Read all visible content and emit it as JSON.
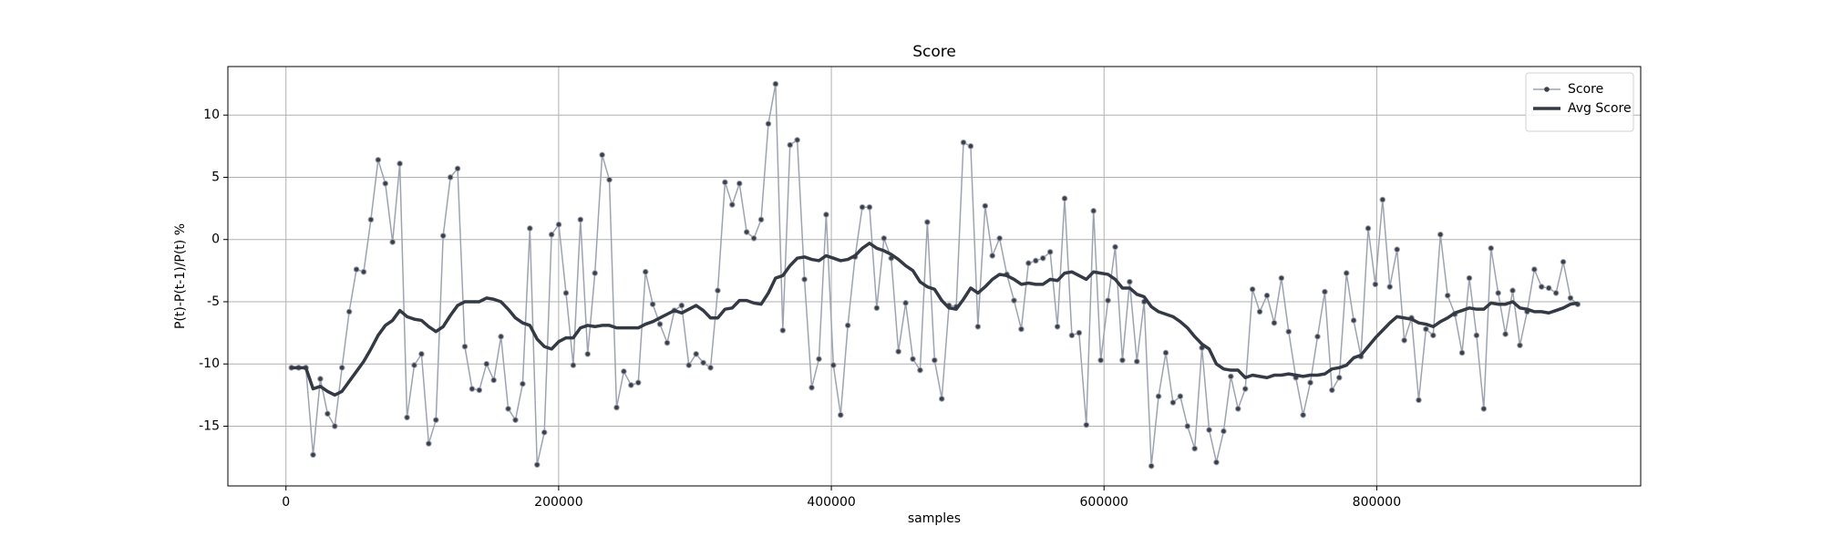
{
  "chart_data": {
    "type": "line",
    "title": "Score",
    "xlabel": "samples",
    "ylabel": "P(t)-P(t-1)/P(t) %",
    "x": [
      4000,
      9300,
      14600,
      19900,
      25200,
      30500,
      35800,
      41100,
      46400,
      51700,
      57000,
      62300,
      67600,
      72900,
      78200,
      83500,
      88800,
      94100,
      99400,
      104700,
      110000,
      115300,
      120600,
      125900,
      131200,
      136500,
      141800,
      147100,
      152400,
      157700,
      163000,
      168300,
      173600,
      178900,
      184200,
      189500,
      194800,
      200100,
      205400,
      210700,
      216000,
      221300,
      226600,
      231900,
      237200,
      242500,
      247800,
      253100,
      258400,
      263700,
      269000,
      274300,
      279600,
      284900,
      290200,
      295500,
      300800,
      306100,
      311400,
      316700,
      322000,
      327300,
      332600,
      337900,
      343200,
      348500,
      353800,
      359100,
      364400,
      369700,
      375000,
      380300,
      385600,
      390900,
      396200,
      401500,
      406800,
      412100,
      417400,
      422700,
      428000,
      433300,
      438600,
      443900,
      449200,
      454500,
      459800,
      465100,
      470400,
      475700,
      481000,
      486300,
      491600,
      496900,
      502200,
      507500,
      512800,
      518100,
      523400,
      528700,
      534000,
      539300,
      544600,
      549900,
      555200,
      560500,
      565800,
      571100,
      576400,
      581700,
      587000,
      592300,
      597600,
      602900,
      608200,
      613500,
      618800,
      624100,
      629400,
      634700,
      640000,
      645300,
      650600,
      655900,
      661200,
      666500,
      671800,
      677100,
      682400,
      687700,
      693000,
      698300,
      703600,
      708900,
      714200,
      719500,
      724800,
      730100,
      735400,
      740700,
      746000,
      751300,
      756600,
      761900,
      767200,
      772500,
      777800,
      783100,
      788400,
      793700,
      799000,
      804300,
      809600,
      814900,
      820200,
      825500,
      830800,
      836100,
      841400,
      846700,
      852000,
      857300,
      862600,
      867900,
      873200,
      878500,
      883800,
      889100,
      894400,
      899700,
      905000,
      910300,
      915600,
      920900,
      926200,
      931500,
      936800,
      942100,
      947400
    ],
    "series": [
      {
        "name": "Score",
        "color": "#9ea3b0",
        "marker_color": "#3b3f4a",
        "markers": true,
        "line_width": 1.5,
        "values": [
          -10.3,
          -10.3,
          -10.3,
          -17.3,
          -11.2,
          -14,
          -15,
          -10.3,
          -5.8,
          -2.4,
          -2.6,
          1.6,
          6.4,
          4.5,
          -0.2,
          6.1,
          -14.3,
          -10.1,
          -9.2,
          -16.4,
          -14.5,
          0.3,
          5,
          5.7,
          -8.6,
          -12,
          -12.1,
          -10,
          -11.3,
          -7.8,
          -13.6,
          -14.5,
          -11.6,
          0.9,
          -18.1,
          -15.5,
          0.4,
          1.2,
          -4.3,
          -10.1,
          1.6,
          -9.2,
          -2.7,
          6.8,
          4.8,
          -13.5,
          -10.6,
          -11.7,
          -11.5,
          -2.6,
          -5.2,
          -6.8,
          -8.3,
          -5.7,
          -5.3,
          -10.1,
          -9.2,
          -9.9,
          -10.3,
          -4.1,
          4.6,
          2.8,
          4.5,
          0.6,
          0.1,
          1.6,
          9.3,
          12.5,
          -7.3,
          7.6,
          8,
          -3.2,
          -11.9,
          -9.6,
          2,
          -10.1,
          -14.1,
          -6.9,
          -1.4,
          2.6,
          2.6,
          -5.5,
          0.1,
          -1.5,
          -9,
          -5.1,
          -9.6,
          -10.5,
          1.4,
          -9.7,
          -12.8,
          -5.3,
          -5.4,
          7.8,
          7.5,
          -7,
          2.7,
          -1.3,
          0.1,
          -2.8,
          -4.9,
          -7.2,
          -1.9,
          -1.7,
          -1.5,
          -1,
          -7,
          3.3,
          -7.7,
          -7.5,
          -14.9,
          2.3,
          -9.7,
          -4.9,
          -0.6,
          -9.7,
          -3.4,
          -9.8,
          -5,
          -18.2,
          -12.6,
          -9.1,
          -13.1,
          -12.6,
          -15,
          -16.8,
          -8.7,
          -15.3,
          -17.9,
          -15.4,
          -11,
          -13.6,
          -12,
          -4,
          -5.8,
          -4.5,
          -6.7,
          -3.1,
          -7.4,
          -11.1,
          -14.1,
          -11.5,
          -7.8,
          -4.2,
          -12.1,
          -11.1,
          -2.7,
          -6.5,
          -9.4,
          0.9,
          -3.6,
          3.2,
          -3.8,
          -0.8,
          -8.1,
          -6.3,
          -12.9,
          -7.2,
          -7.7,
          0.4,
          -4.5,
          -6,
          -9.1,
          -3.1,
          -7.7,
          -13.6,
          -0.7,
          -4.3,
          -7.6,
          -4.1,
          -8.5,
          -5.8,
          -2.4,
          -3.8,
          -3.9,
          -4.3,
          -1.8,
          -4.7,
          -5.2
        ]
      },
      {
        "name": "Avg Score",
        "color": "#343a45",
        "markers": false,
        "line_width": 3.5,
        "values": [
          -10.3,
          -10.3,
          -10.3,
          -12.0,
          -11.8,
          -12.2,
          -12.5,
          -12.2,
          -11.4,
          -10.6,
          -9.8,
          -8.8,
          -7.7,
          -6.9,
          -6.5,
          -5.7,
          -6.2,
          -6.4,
          -6.5,
          -7.0,
          -7.4,
          -7.0,
          -6.1,
          -5.3,
          -5.0,
          -5.0,
          -5.0,
          -4.7,
          -4.8,
          -5.0,
          -5.6,
          -6.3,
          -6.7,
          -6.9,
          -8.0,
          -8.6,
          -8.8,
          -8.2,
          -7.9,
          -7.9,
          -7.1,
          -6.9,
          -7.0,
          -6.9,
          -6.9,
          -7.1,
          -7.1,
          -7.1,
          -7.1,
          -6.8,
          -6.6,
          -6.3,
          -6.0,
          -5.7,
          -5.9,
          -5.6,
          -5.3,
          -5.7,
          -6.3,
          -6.3,
          -5.6,
          -5.5,
          -4.9,
          -4.9,
          -5.1,
          -5.2,
          -4.3,
          -3.1,
          -2.9,
          -2.1,
          -1.5,
          -1.4,
          -1.6,
          -1.7,
          -1.3,
          -1.5,
          -1.7,
          -1.6,
          -1.3,
          -0.7,
          -0.3,
          -0.7,
          -0.9,
          -1.2,
          -1.6,
          -2.1,
          -2.5,
          -3.4,
          -3.8,
          -4.0,
          -4.9,
          -5.5,
          -5.6,
          -4.8,
          -3.9,
          -4.3,
          -3.8,
          -3.2,
          -2.8,
          -2.9,
          -3.2,
          -3.6,
          -3.5,
          -3.6,
          -3.6,
          -3.2,
          -3.3,
          -2.7,
          -2.6,
          -2.9,
          -3.2,
          -2.6,
          -2.7,
          -2.8,
          -3.2,
          -3.9,
          -3.9,
          -4.4,
          -4.6,
          -5.4,
          -5.8,
          -6.0,
          -6.2,
          -6.6,
          -7.1,
          -7.8,
          -8.4,
          -8.8,
          -10.0,
          -10.4,
          -10.5,
          -10.5,
          -11.1,
          -10.9,
          -11.0,
          -11.1,
          -10.9,
          -10.9,
          -10.8,
          -10.9,
          -11.0,
          -10.9,
          -10.9,
          -10.8,
          -10.4,
          -10.3,
          -10.1,
          -9.5,
          -9.3,
          -8.6,
          -7.9,
          -7.3,
          -6.7,
          -6.2,
          -6.3,
          -6.4,
          -6.7,
          -6.8,
          -7.0,
          -6.6,
          -6.3,
          -5.9,
          -5.7,
          -5.5,
          -5.6,
          -5.6,
          -5.1,
          -5.2,
          -5.2,
          -5.0,
          -5.5,
          -5.6,
          -5.8,
          -5.8,
          -5.9,
          -5.7,
          -5.5,
          -5.2,
          -5.1
        ]
      }
    ],
    "xlim": [
      -42600,
      993600
    ],
    "ylim": [
      -19.8,
      13.9
    ],
    "xticks": [
      0,
      200000,
      400000,
      600000,
      800000
    ],
    "yticks": [
      -15,
      -10,
      -5,
      0,
      5,
      10
    ],
    "grid": true,
    "legend": "upper right"
  }
}
